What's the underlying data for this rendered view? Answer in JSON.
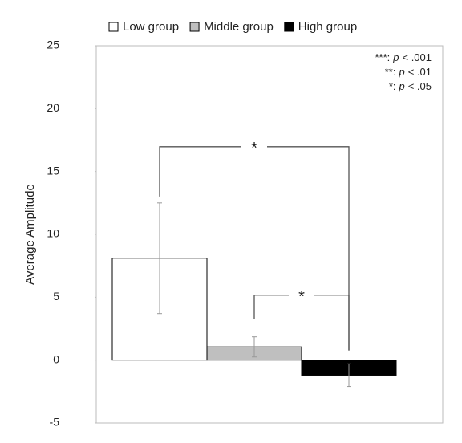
{
  "chart_data": {
    "type": "bar",
    "ylabel": "Average Amplitude",
    "categories": [
      null
    ],
    "series": [
      {
        "name": "Low group",
        "color": "#ffffff",
        "values": [
          8.1
        ],
        "errors": [
          4.4
        ]
      },
      {
        "name": "Middle group",
        "color": "#bfbfbf",
        "values": [
          1.05
        ],
        "errors": [
          0.8
        ]
      },
      {
        "name": "High group",
        "color": "#000000",
        "values": [
          -1.2
        ],
        "errors": [
          0.9
        ]
      }
    ],
    "ylim": [
      -5,
      25
    ],
    "yticks": [
      -5,
      0,
      5,
      10,
      15,
      20,
      25
    ],
    "significance_notes": [
      {
        "stars": "***:",
        "italic": "p",
        "rest": "< .001"
      },
      {
        "stars": "**:",
        "italic": "p",
        "rest": "< .01"
      },
      {
        "stars": "*:",
        "italic": "p",
        "rest": "< .05"
      }
    ],
    "comparisons": [
      {
        "series": [
          0,
          2
        ],
        "label": "*"
      },
      {
        "series": [
          1,
          2
        ],
        "label": "*"
      }
    ]
  }
}
